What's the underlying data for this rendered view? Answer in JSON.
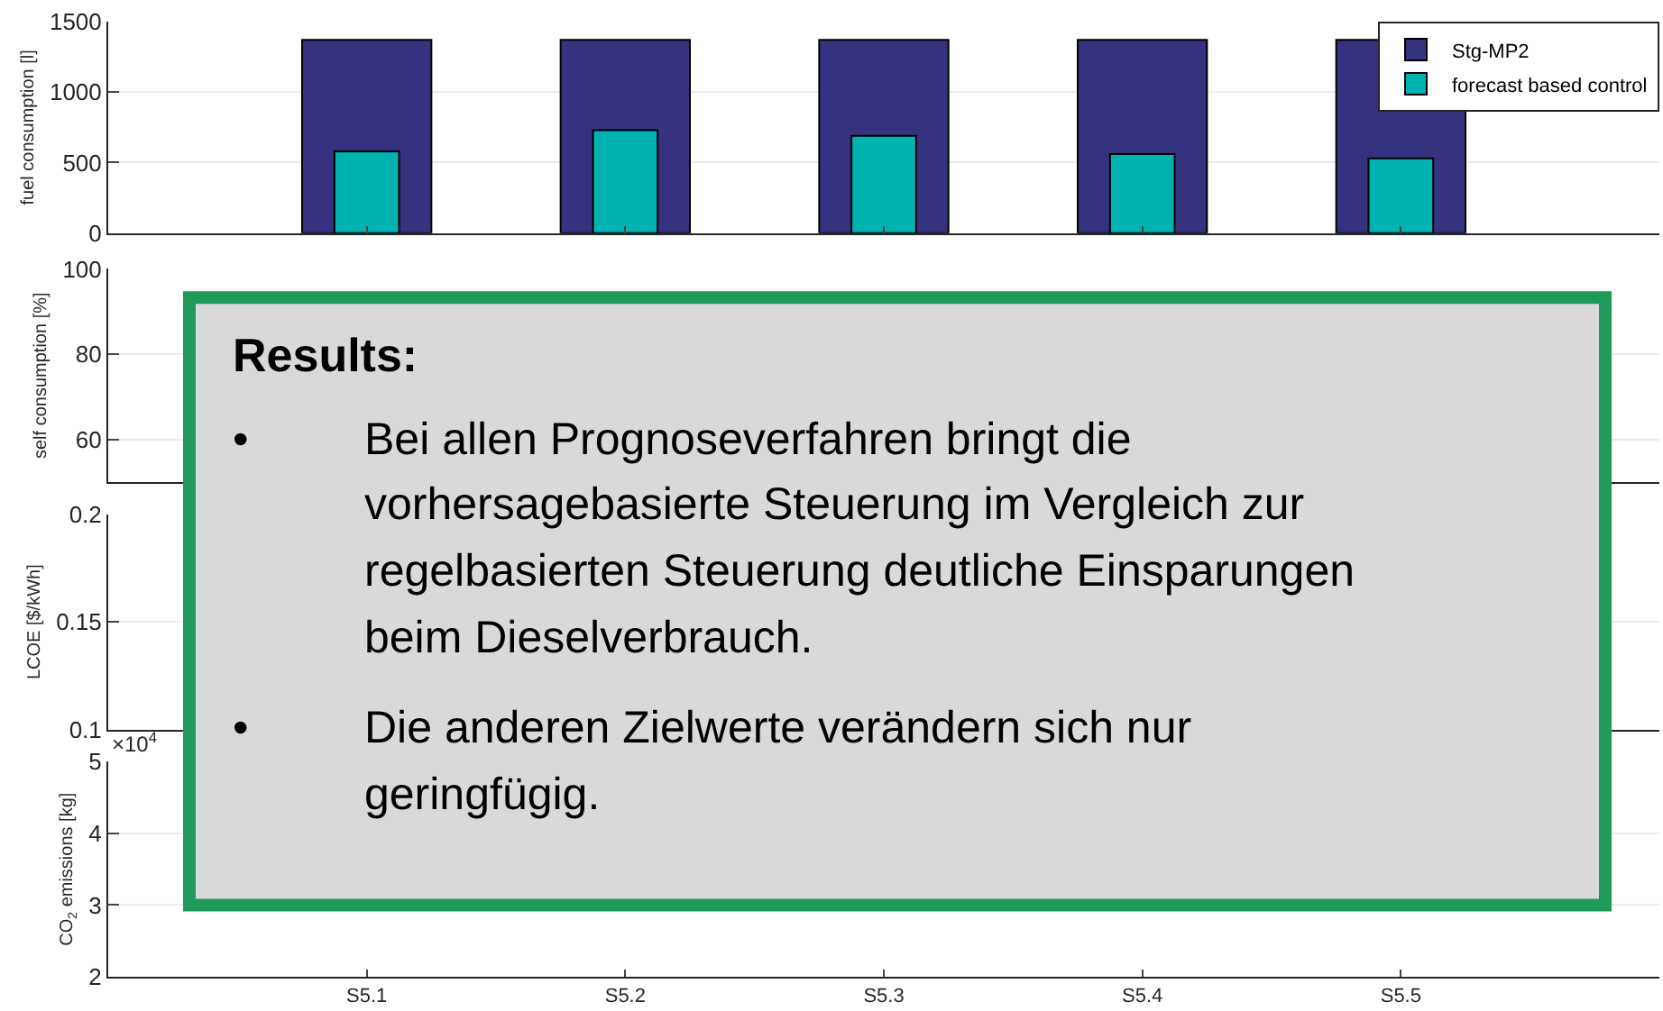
{
  "chart_data": [
    {
      "type": "bar",
      "ylabel": "fuel consumption [l]",
      "categories": [
        null,
        null,
        null,
        null,
        null
      ],
      "ylim": [
        0,
        1500
      ],
      "yticks": [
        0,
        500,
        1000,
        1500
      ],
      "grid": "y",
      "legend": "top right",
      "tick_labels": "y",
      "series": [
        {
          "name": "Stg-MP2",
          "color": "#35337f",
          "values": [
            1370,
            1370,
            1370,
            1370,
            1370
          ]
        },
        {
          "name": "forecast based control",
          "color": "#00b3b0",
          "values": [
            580,
            730,
            690,
            560,
            530
          ]
        }
      ]
    },
    {
      "type": "bar",
      "ylabel": "self consumption [%]",
      "categories": [
        null,
        null,
        null,
        null,
        null
      ],
      "ylim": [
        50,
        100
      ],
      "yticks": [
        60,
        80,
        100
      ],
      "grid": "y",
      "tick_labels": "y",
      "series": [
        {
          "values": [
            null,
            null,
            null,
            null,
            null
          ]
        },
        {
          "values": [
            null,
            null,
            null,
            null,
            null
          ]
        }
      ]
    },
    {
      "type": "bar",
      "ylabel": "LCOE [$/kWh]",
      "categories": [
        null,
        null,
        null,
        null,
        null
      ],
      "ylim": [
        0.1,
        0.2
      ],
      "yticks": [
        0.1,
        0.15,
        0.2
      ],
      "grid": "y",
      "tick_labels": "y",
      "series": [
        {
          "values": [
            null,
            null,
            null,
            null,
            null
          ]
        },
        {
          "values": [
            null,
            null,
            null,
            null,
            null
          ]
        }
      ]
    },
    {
      "type": "bar",
      "ylabel": "CO$_{2}$ emissions [kg]",
      "categories": [
        "S5.1",
        "S5.2",
        "S5.3",
        "S5.4",
        "S5.5"
      ],
      "ylim": [
        2,
        5
      ],
      "yticks": [
        2,
        3,
        4,
        5
      ],
      "grid": "y",
      "annotations": [
        "×10$^{4}$"
      ],
      "series": [
        {
          "values": [
            null,
            null,
            null,
            null,
            null
          ]
        },
        {
          "values": [
            null,
            null,
            null,
            null,
            null
          ]
        }
      ]
    },
    {
      "type": "other",
      "title": "Results:",
      "annotations": [
        "• Bei allen Prognoseverfahren bringt die vorhersagebasierte Steuerung im Vergleich zur regelbasierten Steuerung deutliche Einsparungen beim Dieselverbrauch.",
        "• Die anderen Zielwerte verändern sich nur geringfügig."
      ]
    }
  ]
}
